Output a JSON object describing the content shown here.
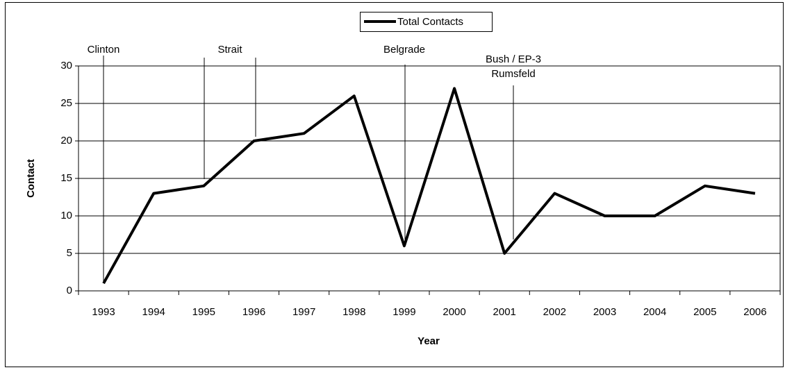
{
  "chart_data": {
    "type": "line",
    "x_label": "Year",
    "y_label": "Contact",
    "categories": [
      "1993",
      "1994",
      "1995",
      "1996",
      "1997",
      "1998",
      "1999",
      "2000",
      "2001",
      "2002",
      "2003",
      "2004",
      "2005",
      "2006"
    ],
    "series": [
      {
        "name": "Total Contacts",
        "color": "#000000",
        "values": [
          1,
          13,
          14,
          20,
          21,
          26,
          6,
          27,
          5,
          13,
          10,
          10,
          14,
          13
        ]
      }
    ],
    "ylim": [
      0,
      30
    ],
    "yticks": [
      0,
      5,
      10,
      15,
      20,
      25,
      30
    ],
    "grid": true,
    "legend": "top",
    "annotations": [
      "Clinton",
      "Strait",
      "Belgrade",
      "Bush / EP-3",
      "Rumsfeld"
    ]
  }
}
